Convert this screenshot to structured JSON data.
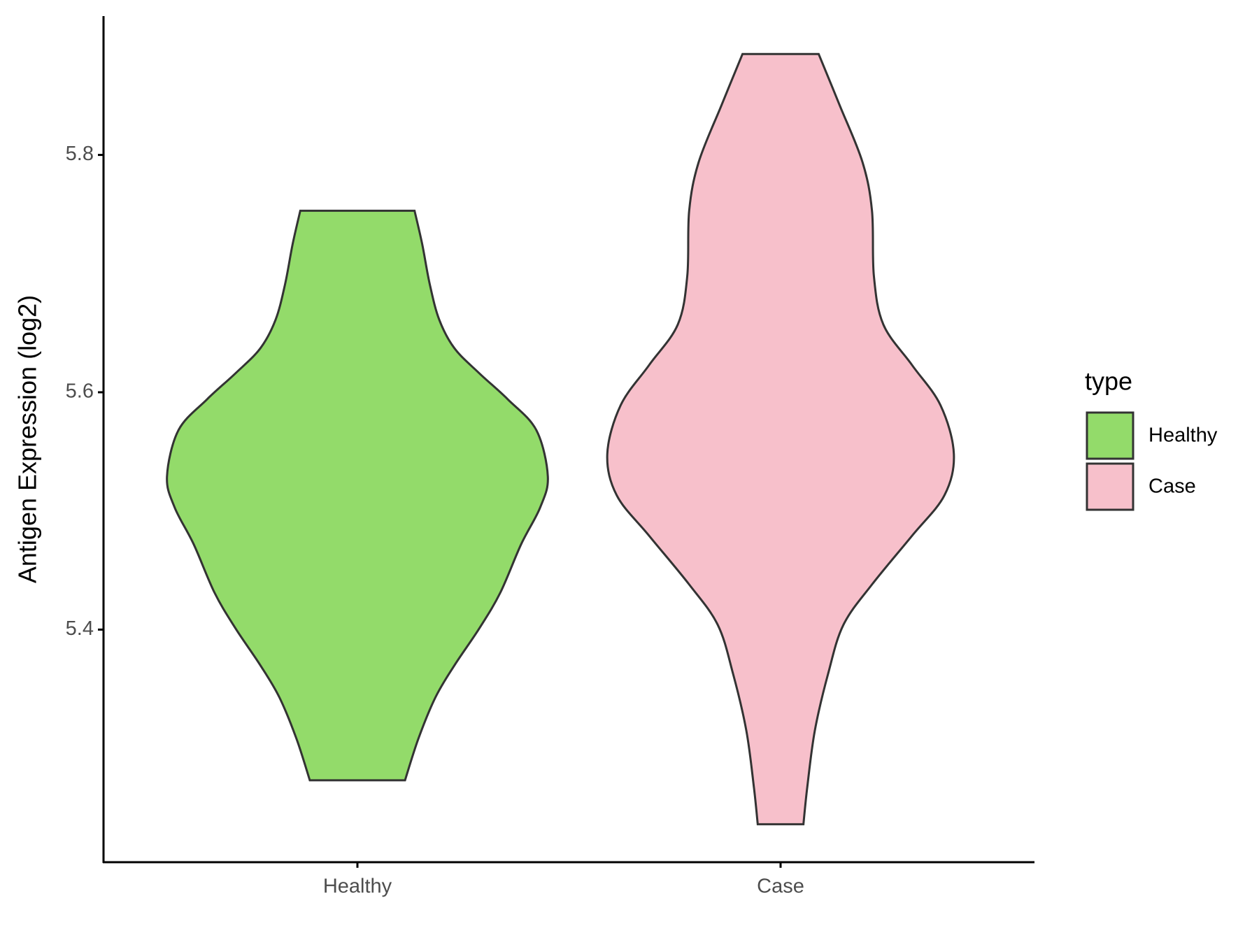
{
  "chart_data": {
    "type": "violin",
    "y_label": "Antigen Expression (log2)",
    "categories": [
      "Healthy",
      "Case"
    ],
    "legend_title": "type",
    "legend_position": "right",
    "ylim": [
      5.204,
      5.917
    ],
    "yticks": [
      5.4,
      5.6,
      5.8
    ],
    "series": [
      {
        "name": "Healthy",
        "color": "#93DB6A",
        "y": [
          5.753,
          5.725,
          5.691,
          5.661,
          5.637,
          5.616,
          5.594,
          5.568,
          5.529,
          5.503,
          5.472,
          5.431,
          5.401,
          5.37,
          5.343,
          5.308,
          5.273
        ],
        "density": [
          0.3,
          0.34,
          0.38,
          0.43,
          0.51,
          0.64,
          0.79,
          0.94,
          1.0,
          0.96,
          0.86,
          0.75,
          0.64,
          0.51,
          0.41,
          0.32,
          0.25
        ]
      },
      {
        "name": "Case",
        "color": "#F7C0CB",
        "y": [
          5.885,
          5.842,
          5.794,
          5.753,
          5.698,
          5.657,
          5.623,
          5.589,
          5.548,
          5.513,
          5.479,
          5.438,
          5.404,
          5.363,
          5.315,
          5.267,
          5.236
        ],
        "density": [
          0.2,
          0.31,
          0.43,
          0.48,
          0.49,
          0.54,
          0.69,
          0.84,
          0.91,
          0.86,
          0.69,
          0.48,
          0.33,
          0.25,
          0.18,
          0.14,
          0.12
        ]
      }
    ]
  }
}
